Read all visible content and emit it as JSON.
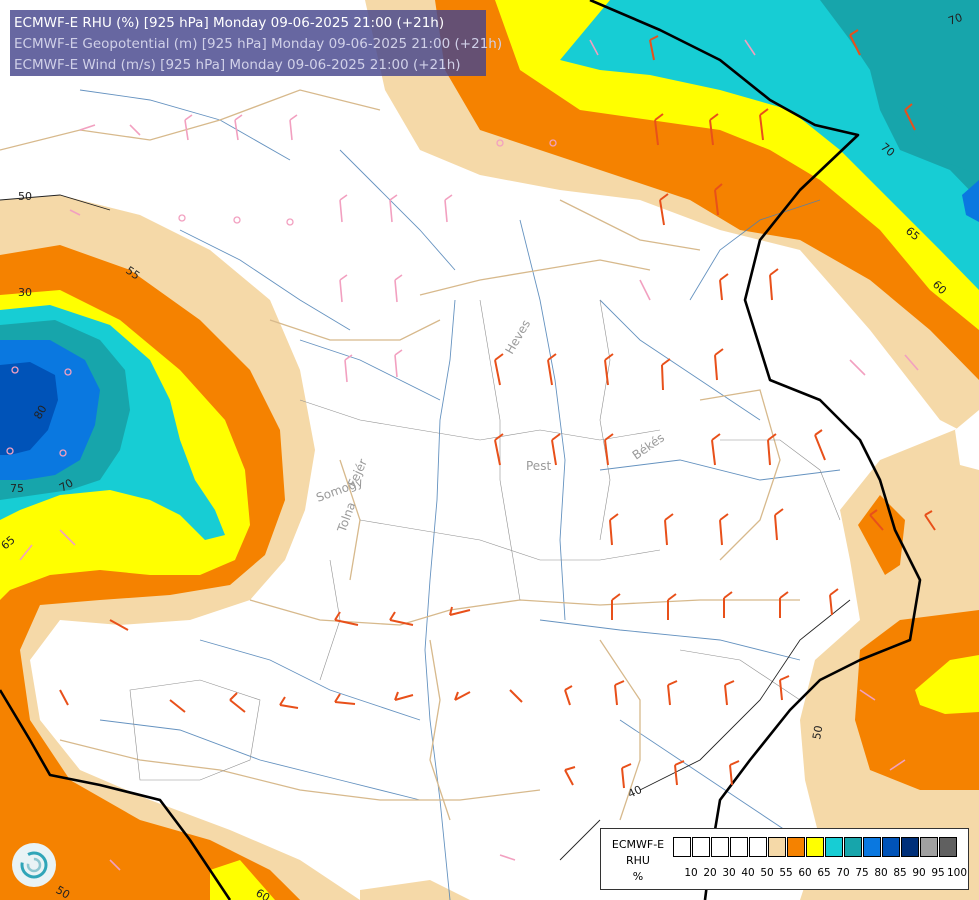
{
  "header": {
    "line1": "ECMWF-E RHU (%) [925 hPa] Monday 09-06-2025 21:00 (+21h)",
    "line2": "ECMWF-E Geopotential (m) [925 hPa] Monday 09-06-2025 21:00 (+21h)",
    "line3": "ECMWF-E Wind (m/s) [925 hPa] Monday 09-06-2025 21:00 (+21h)"
  },
  "legend": {
    "model": "ECMWF-E",
    "variable": "RHU",
    "unit": "%",
    "ticks": [
      "10",
      "20",
      "30",
      "40",
      "50",
      "55",
      "60",
      "65",
      "70",
      "75",
      "80",
      "85",
      "90",
      "95",
      "100"
    ],
    "colors": [
      "#ffffff",
      "#ffffff",
      "#ffffff",
      "#ffffff",
      "#ffffff",
      "#f5d9a8",
      "#f58200",
      "#ffff00",
      "#17cdd4",
      "#17a5ab",
      "#0a78e0",
      "#0053b8",
      "#00307a",
      "#a0a0a0",
      "#606060"
    ]
  },
  "map_labels": {
    "contour_values": [
      "50",
      "55",
      "30",
      "80",
      "75",
      "70",
      "65",
      "70",
      "65",
      "60",
      "50",
      "40",
      "50",
      "60",
      "70"
    ],
    "places": [
      "Heves",
      "Pest",
      "Békés",
      "Fejér",
      "Somogy",
      "Tolna"
    ]
  },
  "icons": {
    "logo": "swirl-logo-icon"
  }
}
